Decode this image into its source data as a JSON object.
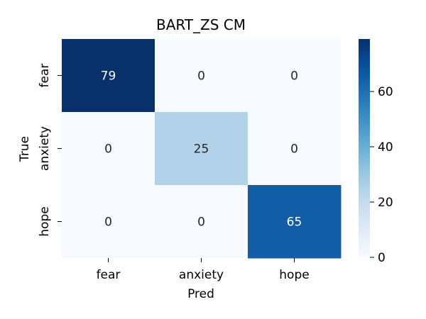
{
  "chart_data": {
    "type": "heatmap",
    "title": "BART_ZS CM",
    "xlabel": "Pred",
    "ylabel": "True",
    "x_categories": [
      "fear",
      "anxiety",
      "hope"
    ],
    "y_categories": [
      "fear",
      "anxiety",
      "hope"
    ],
    "values": [
      [
        79,
        0,
        0
      ],
      [
        0,
        25,
        0
      ],
      [
        0,
        0,
        65
      ]
    ],
    "colorbar": {
      "min": 0,
      "max": 79,
      "ticks": [
        0,
        20,
        40,
        60
      ],
      "colormap": "Blues"
    },
    "colors": {
      "low": "#f7fbff",
      "high": "#08306b"
    }
  }
}
